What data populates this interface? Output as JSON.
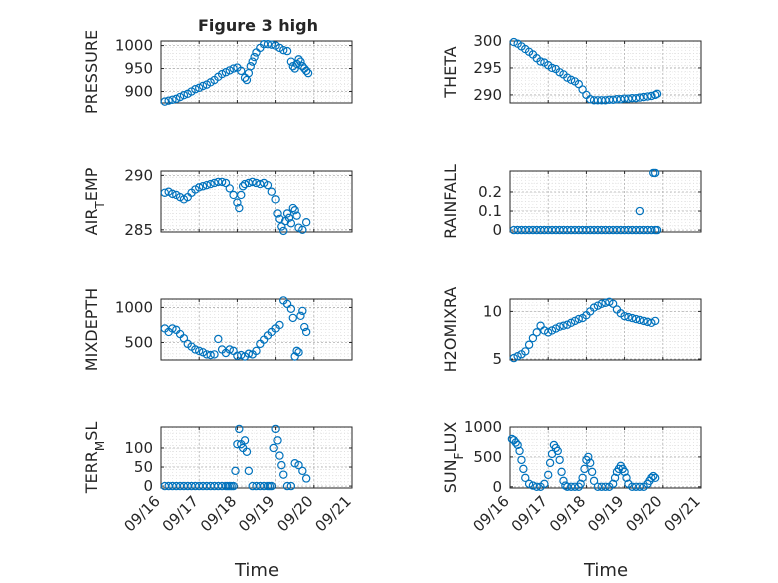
{
  "figure_title": "Figure 3 high",
  "colors": {
    "marker": "#0072BD",
    "axis": "#262626",
    "grid": "#b0b0b0",
    "background": "#ffffff"
  },
  "x_tick_labels": [
    "09/16",
    "09/17",
    "09/18",
    "09/19",
    "09/20",
    "09/21"
  ],
  "xlabel": "Time",
  "chart_data": [
    {
      "type": "scatter",
      "id": "pressure",
      "column": "left",
      "title": "Figure 3 high",
      "ylabel": "PRESSURE",
      "ylabel_sub": "",
      "xlim": [
        0,
        5
      ],
      "ylim": [
        875,
        1010
      ],
      "yticks": [
        900,
        950,
        1000
      ],
      "x": [
        0.1,
        0.2,
        0.3,
        0.4,
        0.5,
        0.6,
        0.7,
        0.8,
        0.9,
        1.0,
        1.1,
        1.2,
        1.3,
        1.4,
        1.5,
        1.6,
        1.7,
        1.8,
        1.9,
        2.0,
        2.1,
        2.2,
        2.25,
        2.3,
        2.35,
        2.4,
        2.45,
        2.5,
        2.6,
        2.7,
        2.8,
        2.9,
        3.0,
        3.1,
        3.2,
        3.3,
        3.4,
        3.45,
        3.5,
        3.55,
        3.6,
        3.65,
        3.7,
        3.75,
        3.8,
        3.85
      ],
      "y": [
        878,
        880,
        882,
        884,
        888,
        892,
        895,
        900,
        905,
        908,
        912,
        915,
        920,
        925,
        932,
        938,
        942,
        946,
        950,
        952,
        945,
        930,
        925,
        940,
        955,
        965,
        975,
        985,
        995,
        1003,
        1003,
        1002,
        1000,
        995,
        990,
        988,
        965,
        955,
        950,
        960,
        970,
        965,
        955,
        950,
        945,
        940
      ]
    },
    {
      "type": "scatter",
      "id": "theta",
      "column": "right",
      "ylabel": "THETA",
      "ylabel_sub": "",
      "xlim": [
        0,
        5
      ],
      "ylim": [
        288.5,
        300
      ],
      "yticks": [
        290,
        295,
        300
      ],
      "x": [
        0.1,
        0.2,
        0.3,
        0.4,
        0.5,
        0.6,
        0.7,
        0.8,
        0.9,
        1.0,
        1.1,
        1.2,
        1.3,
        1.4,
        1.5,
        1.6,
        1.7,
        1.8,
        1.9,
        2.0,
        2.1,
        2.2,
        2.3,
        2.4,
        2.5,
        2.6,
        2.7,
        2.8,
        2.9,
        3.0,
        3.1,
        3.2,
        3.3,
        3.4,
        3.5,
        3.6,
        3.7,
        3.8,
        3.85
      ],
      "y": [
        299.8,
        299.5,
        299.0,
        298.5,
        298.0,
        297.5,
        296.8,
        296.2,
        296.0,
        295.5,
        295.0,
        294.8,
        294.2,
        293.8,
        293.2,
        292.8,
        292.5,
        292.0,
        291.0,
        290.0,
        289.2,
        289.0,
        289.0,
        289.0,
        289.0,
        289.1,
        289.1,
        289.2,
        289.2,
        289.3,
        289.3,
        289.4,
        289.4,
        289.5,
        289.6,
        289.7,
        289.8,
        290.0,
        290.2
      ]
    },
    {
      "type": "scatter",
      "id": "air_temp",
      "column": "left",
      "ylabel": "AIR",
      "ylabel_sub": "T",
      "ylabel_suffix": "EMP",
      "xlim": [
        0,
        5
      ],
      "ylim": [
        284.8,
        290.4
      ],
      "yticks": [
        285,
        290
      ],
      "x": [
        0.1,
        0.2,
        0.3,
        0.4,
        0.5,
        0.6,
        0.7,
        0.8,
        0.9,
        1.0,
        1.1,
        1.2,
        1.3,
        1.4,
        1.5,
        1.6,
        1.7,
        1.8,
        1.9,
        2.0,
        2.05,
        2.1,
        2.15,
        2.2,
        2.3,
        2.4,
        2.5,
        2.6,
        2.7,
        2.8,
        2.9,
        3.0,
        3.05,
        3.1,
        3.15,
        3.2,
        3.25,
        3.3,
        3.35,
        3.4,
        3.45,
        3.5,
        3.55,
        3.6,
        3.7,
        3.8
      ],
      "y": [
        288.4,
        288.5,
        288.3,
        288.2,
        288.0,
        287.8,
        288.0,
        288.4,
        288.7,
        288.9,
        289.0,
        289.1,
        289.2,
        289.3,
        289.4,
        289.4,
        289.3,
        288.8,
        288.2,
        287.5,
        287.0,
        288.2,
        289.0,
        289.2,
        289.3,
        289.4,
        289.3,
        289.2,
        289.3,
        289.1,
        288.5,
        287.8,
        286.5,
        286.0,
        285.3,
        284.9,
        285.8,
        286.5,
        286.1,
        285.6,
        287.0,
        286.8,
        286.3,
        285.2,
        285.0,
        285.7
      ]
    },
    {
      "type": "scatter",
      "id": "rainfall",
      "column": "right",
      "ylabel": "RAINFALL",
      "ylabel_sub": "",
      "xlim": [
        0,
        5
      ],
      "ylim": [
        -0.01,
        0.31
      ],
      "yticks": [
        0,
        0.1,
        0.2
      ],
      "x": [
        0.1,
        0.2,
        0.3,
        0.4,
        0.5,
        0.6,
        0.7,
        0.8,
        0.9,
        1.0,
        1.1,
        1.2,
        1.3,
        1.4,
        1.5,
        1.6,
        1.7,
        1.8,
        1.9,
        2.0,
        2.1,
        2.2,
        2.3,
        2.4,
        2.5,
        2.6,
        2.7,
        2.8,
        2.9,
        3.0,
        3.1,
        3.2,
        3.3,
        3.4,
        3.5,
        3.6,
        3.7,
        3.8,
        3.85,
        3.4,
        3.75,
        3.8
      ],
      "y": [
        0,
        0,
        0,
        0,
        0,
        0,
        0,
        0,
        0,
        0,
        0,
        0,
        0,
        0,
        0,
        0,
        0,
        0,
        0,
        0,
        0,
        0,
        0,
        0,
        0,
        0,
        0,
        0,
        0,
        0,
        0,
        0,
        0,
        0,
        0,
        0,
        0,
        0,
        0,
        0.1,
        0.3,
        0.3
      ]
    },
    {
      "type": "scatter",
      "id": "mixdepth",
      "column": "left",
      "ylabel": "MIXDEPTH",
      "ylabel_sub": "",
      "xlim": [
        0,
        5
      ],
      "ylim": [
        250,
        1120
      ],
      "yticks": [
        500,
        1000
      ],
      "x": [
        0.1,
        0.2,
        0.3,
        0.4,
        0.5,
        0.6,
        0.7,
        0.8,
        0.9,
        1.0,
        1.1,
        1.2,
        1.3,
        1.4,
        1.5,
        1.6,
        1.7,
        1.8,
        1.9,
        2.0,
        2.1,
        2.2,
        2.3,
        2.4,
        2.5,
        2.6,
        2.7,
        2.8,
        2.9,
        3.0,
        3.1,
        3.2,
        3.3,
        3.4,
        3.45,
        3.5,
        3.55,
        3.6,
        3.65,
        3.7,
        3.75,
        3.8
      ],
      "y": [
        700,
        650,
        700,
        680,
        620,
        560,
        480,
        440,
        400,
        380,
        360,
        330,
        320,
        330,
        550,
        400,
        350,
        400,
        380,
        310,
        320,
        300,
        340,
        330,
        380,
        480,
        540,
        600,
        650,
        700,
        750,
        1100,
        1050,
        980,
        850,
        300,
        380,
        360,
        880,
        950,
        720,
        650
      ]
    },
    {
      "type": "scatter",
      "id": "h2omixra",
      "column": "right",
      "ylabel": "H2OMIXRA",
      "ylabel_sub": "",
      "xlim": [
        0,
        5
      ],
      "ylim": [
        4.9,
        11.3
      ],
      "yticks": [
        5,
        10
      ],
      "x": [
        0.1,
        0.2,
        0.3,
        0.4,
        0.5,
        0.6,
        0.7,
        0.8,
        0.9,
        1.0,
        1.1,
        1.2,
        1.3,
        1.4,
        1.5,
        1.6,
        1.7,
        1.8,
        1.9,
        2.0,
        2.1,
        2.2,
        2.3,
        2.4,
        2.5,
        2.6,
        2.7,
        2.8,
        2.9,
        3.0,
        3.1,
        3.2,
        3.3,
        3.4,
        3.5,
        3.6,
        3.7,
        3.8
      ],
      "y": [
        5.1,
        5.3,
        5.5,
        5.8,
        6.5,
        7.2,
        7.8,
        8.5,
        8.0,
        7.8,
        8.0,
        8.2,
        8.4,
        8.5,
        8.6,
        8.8,
        9.0,
        9.2,
        9.3,
        9.6,
        10.0,
        10.4,
        10.6,
        10.8,
        10.9,
        11.0,
        10.8,
        10.2,
        9.8,
        9.5,
        9.4,
        9.3,
        9.2,
        9.1,
        9.0,
        8.9,
        8.8,
        9.0
      ]
    },
    {
      "type": "scatter",
      "id": "terr_msl",
      "column": "left",
      "ylabel": "TERR",
      "ylabel_sub": "M",
      "ylabel_suffix": "SL",
      "xlim": [
        0,
        5
      ],
      "ylim": [
        -5,
        155
      ],
      "yticks": [
        0,
        50,
        100
      ],
      "x": [
        0.1,
        0.2,
        0.3,
        0.4,
        0.5,
        0.6,
        0.7,
        0.8,
        0.9,
        1.0,
        1.1,
        1.2,
        1.3,
        1.4,
        1.5,
        1.6,
        1.7,
        1.75,
        1.8,
        1.85,
        1.9,
        1.95,
        2.0,
        2.05,
        2.1,
        2.15,
        2.2,
        2.25,
        2.3,
        2.4,
        2.5,
        2.6,
        2.7,
        2.8,
        2.85,
        2.9,
        2.95,
        3.0,
        3.05,
        3.1,
        3.15,
        3.2,
        3.3,
        3.4,
        3.5,
        3.6,
        3.7,
        3.8
      ],
      "y": [
        0,
        0,
        0,
        0,
        0,
        0,
        0,
        0,
        0,
        0,
        0,
        0,
        0,
        0,
        0,
        0,
        0,
        0,
        0,
        0,
        0,
        40,
        110,
        150,
        110,
        100,
        120,
        90,
        40,
        0,
        0,
        0,
        0,
        0,
        0,
        0,
        100,
        150,
        120,
        80,
        55,
        30,
        0,
        0,
        60,
        55,
        40,
        20
      ]
    },
    {
      "type": "scatter",
      "id": "sun_flux",
      "column": "right",
      "ylabel": "SUN",
      "ylabel_sub": "F",
      "ylabel_suffix": "LUX",
      "xlim": [
        0,
        5
      ],
      "ylim": [
        -20,
        1000
      ],
      "yticks": [
        0,
        500,
        1000
      ],
      "x": [
        0.05,
        0.1,
        0.15,
        0.2,
        0.25,
        0.3,
        0.35,
        0.4,
        0.5,
        0.6,
        0.7,
        0.8,
        0.9,
        1.0,
        1.05,
        1.1,
        1.15,
        1.2,
        1.25,
        1.3,
        1.35,
        1.4,
        1.45,
        1.5,
        1.6,
        1.7,
        1.8,
        1.85,
        1.9,
        1.95,
        2.0,
        2.05,
        2.1,
        2.15,
        2.2,
        2.3,
        2.4,
        2.5,
        2.6,
        2.7,
        2.75,
        2.8,
        2.85,
        2.9,
        2.95,
        3.0,
        3.05,
        3.1,
        3.2,
        3.3,
        3.4,
        3.5,
        3.6,
        3.65,
        3.7,
        3.75,
        3.8
      ],
      "y": [
        800,
        780,
        740,
        700,
        600,
        450,
        300,
        150,
        50,
        20,
        0,
        0,
        50,
        200,
        400,
        550,
        700,
        650,
        600,
        450,
        250,
        100,
        20,
        0,
        0,
        0,
        0,
        50,
        150,
        300,
        450,
        500,
        400,
        250,
        100,
        0,
        0,
        0,
        0,
        50,
        150,
        250,
        300,
        350,
        300,
        250,
        150,
        50,
        0,
        0,
        0,
        0,
        50,
        100,
        150,
        180,
        150
      ]
    }
  ]
}
